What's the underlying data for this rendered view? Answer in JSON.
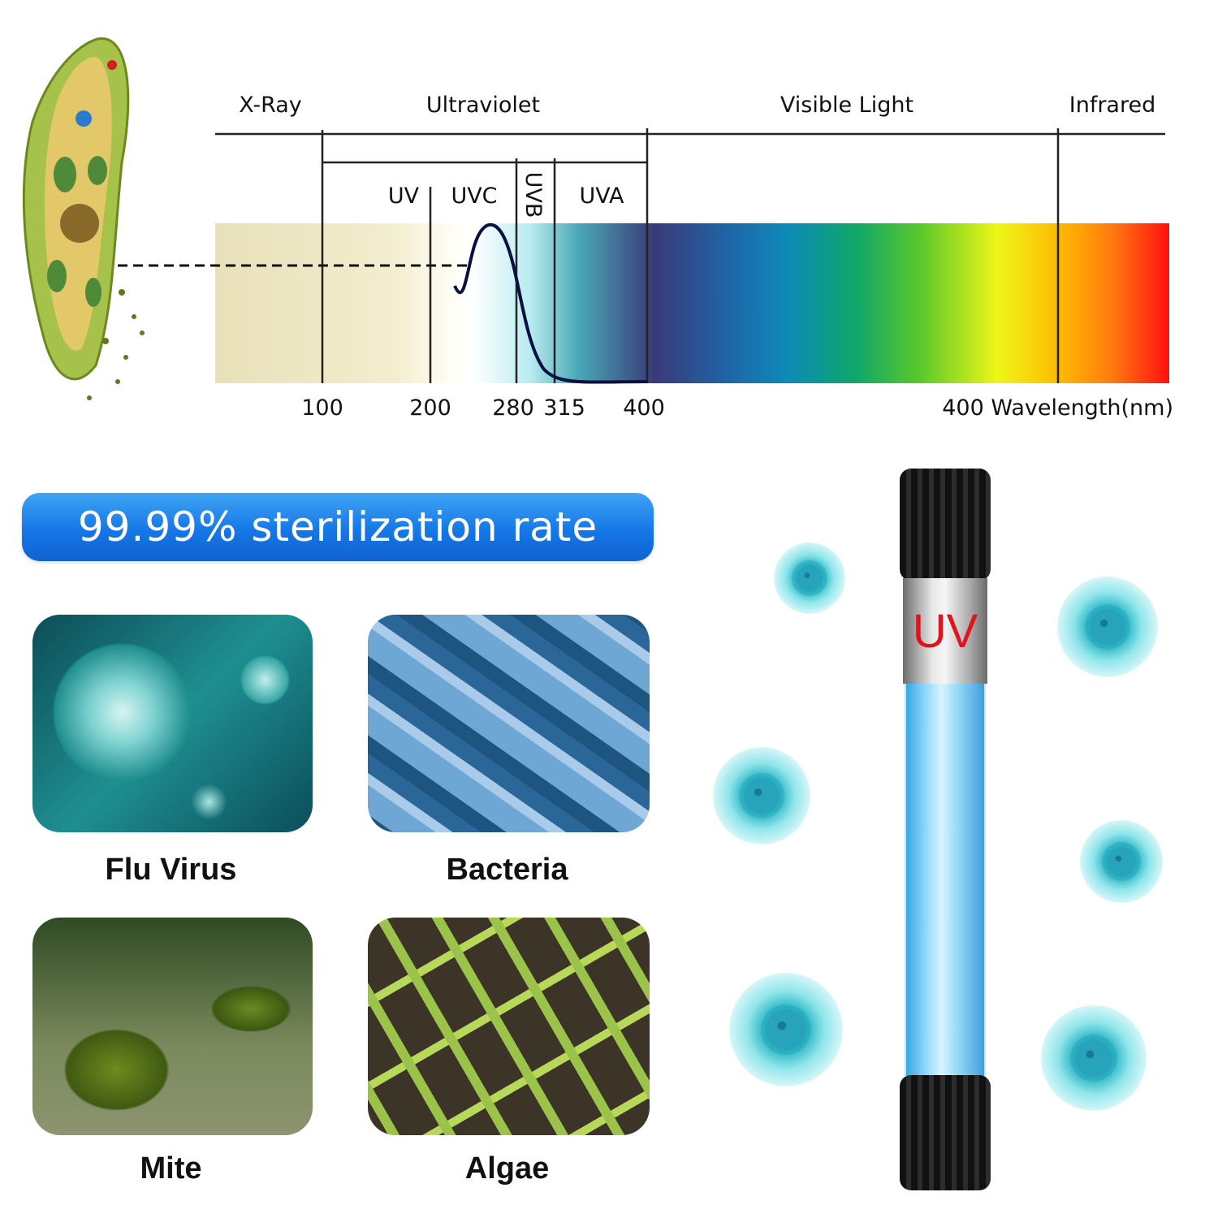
{
  "spectrum": {
    "regions": [
      "X-Ray",
      "Ultraviolet",
      "Visible Light",
      "Infrared"
    ],
    "uv_bands": [
      "UV",
      "UVC",
      "UVB",
      "UVA"
    ],
    "ticks": [
      "100",
      "200",
      "280",
      "315",
      "400"
    ],
    "axis_label": "400 Wavelength(nm)"
  },
  "banner": {
    "text": "99.99% sterilization rate",
    "color": "#1677e6"
  },
  "targets": [
    {
      "label": "Flu Virus"
    },
    {
      "label": "Bacteria"
    },
    {
      "label": "Mite"
    },
    {
      "label": "Algae"
    }
  ],
  "lamp": {
    "label": "UV",
    "label_color": "#e0141c",
    "glow_color": "#7fd3f5"
  }
}
